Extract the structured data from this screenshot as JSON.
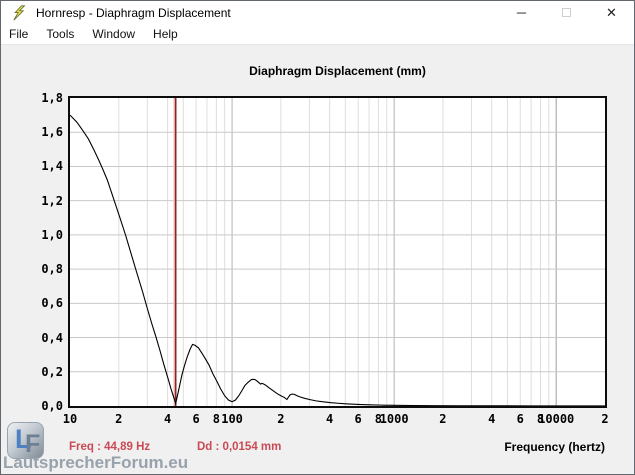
{
  "window": {
    "title": "Hornresp - Diaphragm Displacement",
    "controls": {
      "minimize": "─",
      "close": "✕"
    }
  },
  "menu": {
    "items": [
      "File",
      "Tools",
      "Window",
      "Help"
    ]
  },
  "chart_data": {
    "type": "line",
    "title": "Diaphragm Displacement (mm)",
    "xlabel": "Frequency (hertz)",
    "ylabel": "",
    "x_scale": "log",
    "x_range": [
      10,
      20000
    ],
    "y_range": [
      0,
      1.8
    ],
    "grid": true,
    "y_ticks": [
      {
        "label": "1,8",
        "v": 1.8
      },
      {
        "label": "1,6",
        "v": 1.6
      },
      {
        "label": "1,4",
        "v": 1.4
      },
      {
        "label": "1,2",
        "v": 1.2
      },
      {
        "label": "1,0",
        "v": 1.0
      },
      {
        "label": "0,8",
        "v": 0.8
      },
      {
        "label": "0,6",
        "v": 0.6
      },
      {
        "label": "0,4",
        "v": 0.4
      },
      {
        "label": "0,2",
        "v": 0.2
      },
      {
        "label": "0,0",
        "v": 0.0
      }
    ],
    "x_ticks": [
      {
        "label": "10",
        "f": 10
      },
      {
        "label": "2",
        "f": 20
      },
      {
        "label": "4",
        "f": 40
      },
      {
        "label": "6",
        "f": 60
      },
      {
        "label": "8",
        "f": 80
      },
      {
        "label": "100",
        "f": 100
      },
      {
        "label": "2",
        "f": 200
      },
      {
        "label": "4",
        "f": 400
      },
      {
        "label": "6",
        "f": 600
      },
      {
        "label": "8",
        "f": 800
      },
      {
        "label": "1000",
        "f": 1000
      },
      {
        "label": "2",
        "f": 2000
      },
      {
        "label": "4",
        "f": 4000
      },
      {
        "label": "6",
        "f": 6000
      },
      {
        "label": "8",
        "f": 8000
      },
      {
        "label": "10000",
        "f": 10000
      },
      {
        "label": "2",
        "f": 20000
      }
    ],
    "cursor_marker": {
      "freq": 44.89,
      "color": "#8b2626",
      "halo_color": "#efb9b9"
    },
    "series": [
      {
        "name": "Diaphragm Displacement",
        "color": "#000000",
        "points": [
          [
            10,
            1.7
          ],
          [
            11,
            1.66
          ],
          [
            12,
            1.61
          ],
          [
            13,
            1.56
          ],
          [
            14,
            1.5
          ],
          [
            15,
            1.44
          ],
          [
            16,
            1.38
          ],
          [
            17,
            1.32
          ],
          [
            18,
            1.25
          ],
          [
            20,
            1.12
          ],
          [
            22,
            1.0
          ],
          [
            24,
            0.88
          ],
          [
            26,
            0.77
          ],
          [
            28,
            0.67
          ],
          [
            30,
            0.57
          ],
          [
            32,
            0.48
          ],
          [
            34,
            0.4
          ],
          [
            36,
            0.32
          ],
          [
            38,
            0.24
          ],
          [
            40,
            0.17
          ],
          [
            42,
            0.1
          ],
          [
            43.5,
            0.055
          ],
          [
            44.89,
            0.015
          ],
          [
            46,
            0.06
          ],
          [
            47.5,
            0.12
          ],
          [
            49,
            0.18
          ],
          [
            51,
            0.24
          ],
          [
            53,
            0.29
          ],
          [
            55,
            0.33
          ],
          [
            57,
            0.36
          ],
          [
            59,
            0.355
          ],
          [
            62,
            0.34
          ],
          [
            65,
            0.31
          ],
          [
            68,
            0.28
          ],
          [
            72,
            0.24
          ],
          [
            76,
            0.19
          ],
          [
            80,
            0.15
          ],
          [
            85,
            0.1
          ],
          [
            90,
            0.06
          ],
          [
            95,
            0.035
          ],
          [
            100,
            0.025
          ],
          [
            105,
            0.035
          ],
          [
            110,
            0.06
          ],
          [
            115,
            0.09
          ],
          [
            120,
            0.12
          ],
          [
            126,
            0.14
          ],
          [
            132,
            0.155
          ],
          [
            138,
            0.155
          ],
          [
            143,
            0.145
          ],
          [
            147,
            0.135
          ],
          [
            150,
            0.128
          ],
          [
            153,
            0.132
          ],
          [
            157,
            0.128
          ],
          [
            162,
            0.12
          ],
          [
            170,
            0.105
          ],
          [
            180,
            0.088
          ],
          [
            190,
            0.072
          ],
          [
            200,
            0.06
          ],
          [
            210,
            0.05
          ],
          [
            218,
            0.038
          ],
          [
            222,
            0.05
          ],
          [
            228,
            0.065
          ],
          [
            235,
            0.07
          ],
          [
            242,
            0.068
          ],
          [
            252,
            0.06
          ],
          [
            265,
            0.052
          ],
          [
            280,
            0.045
          ],
          [
            300,
            0.038
          ],
          [
            330,
            0.03
          ],
          [
            360,
            0.025
          ],
          [
            400,
            0.02
          ],
          [
            450,
            0.016
          ],
          [
            500,
            0.013
          ],
          [
            600,
            0.009
          ],
          [
            700,
            0.007
          ],
          [
            850,
            0.005
          ],
          [
            1000,
            0.004
          ],
          [
            1300,
            0.003
          ],
          [
            1700,
            0.002
          ],
          [
            2500,
            0.0015
          ],
          [
            4000,
            0.001
          ],
          [
            7000,
            0.0006
          ],
          [
            10000,
            0.0004
          ],
          [
            20000,
            0.0003
          ]
        ]
      }
    ],
    "grid_colors": {
      "minor_v": "#dedede",
      "major_v": "#b2b2b2",
      "horizontal": "#c9c9c9"
    }
  },
  "status": {
    "freq_label": "Freq : 44,89 Hz",
    "dd_label": "Dd : 0,0154 mm",
    "color": "#c94a55"
  },
  "logo": {
    "monogram_l": "L",
    "monogram_f": "F",
    "text": "LautsprecherForum.eu"
  }
}
